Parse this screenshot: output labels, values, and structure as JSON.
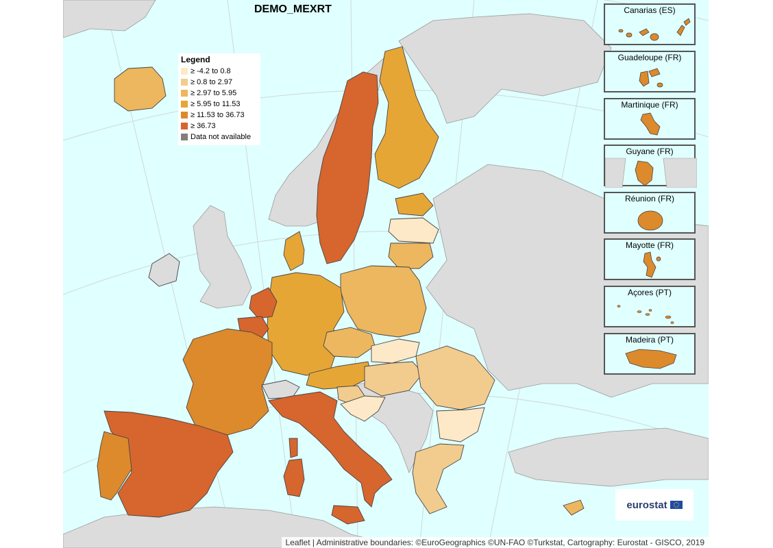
{
  "title": "DEMO_MEXRT",
  "legend": {
    "title": "Legend",
    "items": [
      {
        "label": "≥ -4.2 to 0.8",
        "color": "#fde9c7"
      },
      {
        "label": "≥ 0.8 to 2.97",
        "color": "#f2cc8e"
      },
      {
        "label": "≥ 2.97 to 5.95",
        "color": "#ecb75f"
      },
      {
        "label": "≥ 5.95 to 11.53",
        "color": "#e6a636"
      },
      {
        "label": "≥ 11.53 to 36.73",
        "color": "#dc8a2c"
      },
      {
        "label": "≥ 36.73",
        "color": "#d7652e"
      },
      {
        "label": "Data not available",
        "color": "#808080"
      }
    ]
  },
  "colors": {
    "sea": "#e0ffff",
    "non_eu": "#dcdcdc",
    "border": "#444444"
  },
  "insets": [
    {
      "name": "Canarias (ES)",
      "color": "#dc8a2c"
    },
    {
      "name": "Guadeloupe (FR)",
      "color": "#dc8a2c"
    },
    {
      "name": "Martinique (FR)",
      "color": "#dc8a2c"
    },
    {
      "name": "Guyane (FR)",
      "color": "#dc8a2c"
    },
    {
      "name": "Réunion (FR)",
      "color": "#dc8a2c"
    },
    {
      "name": "Mayotte (FR)",
      "color": "#dc8a2c"
    },
    {
      "name": "Açores (PT)",
      "color": "#dc8a2c"
    },
    {
      "name": "Madeira (PT)",
      "color": "#dc8a2c"
    }
  ],
  "logo_text": "eurostat",
  "attribution": "Leaflet | Administrative boundaries: ©EuroGeographics ©UN-FAO ©Turkstat, Cartography: Eurostat - GISCO, 2019"
}
